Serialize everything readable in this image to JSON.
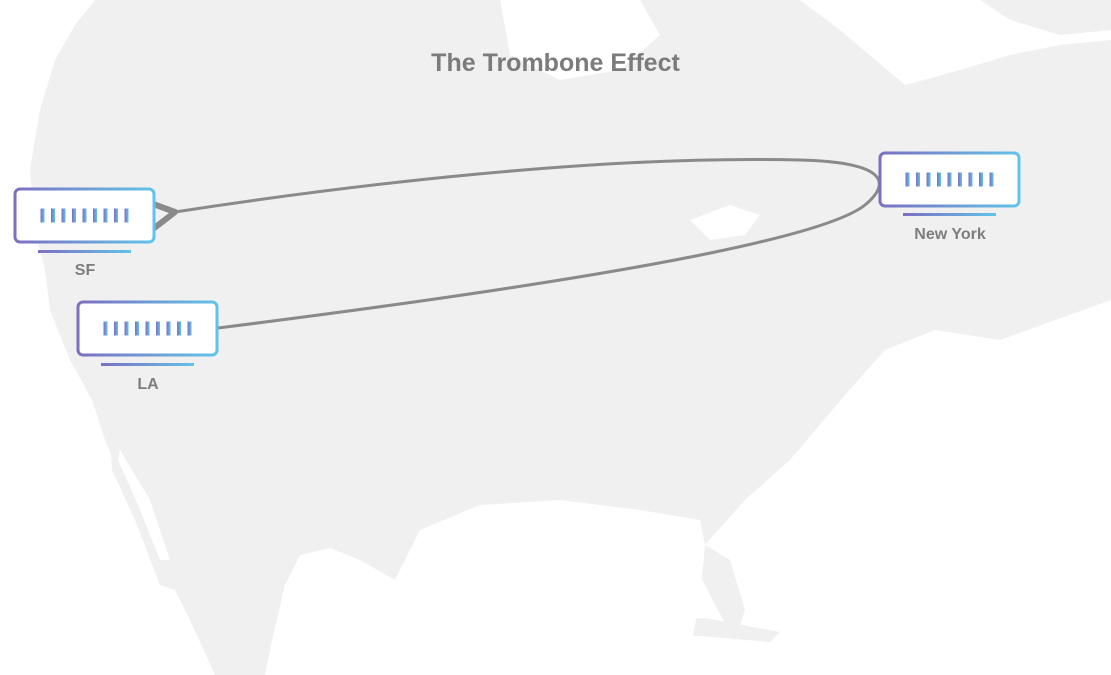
{
  "diagram": {
    "title": "The Trombone Effect",
    "colors": {
      "land": "#f0f0f0",
      "sea": "#ffffff",
      "title_text": "#7b7b7b",
      "label_text": "#7e7e7e",
      "connector": "#8a8a8a",
      "device_gradient_start": "#7c6fc1",
      "device_gradient_end": "#61c3ea"
    },
    "nodes": [
      {
        "id": "sf",
        "label": "SF",
        "icon": "server-icon"
      },
      {
        "id": "la",
        "label": "LA",
        "icon": "server-icon"
      },
      {
        "id": "new_york",
        "label": "New York",
        "icon": "server-icon"
      }
    ],
    "connection": {
      "from": "LA",
      "via": "New York",
      "to": "SF",
      "arrow": "arrowhead-at-SF"
    },
    "background": "map-of-north-america"
  }
}
